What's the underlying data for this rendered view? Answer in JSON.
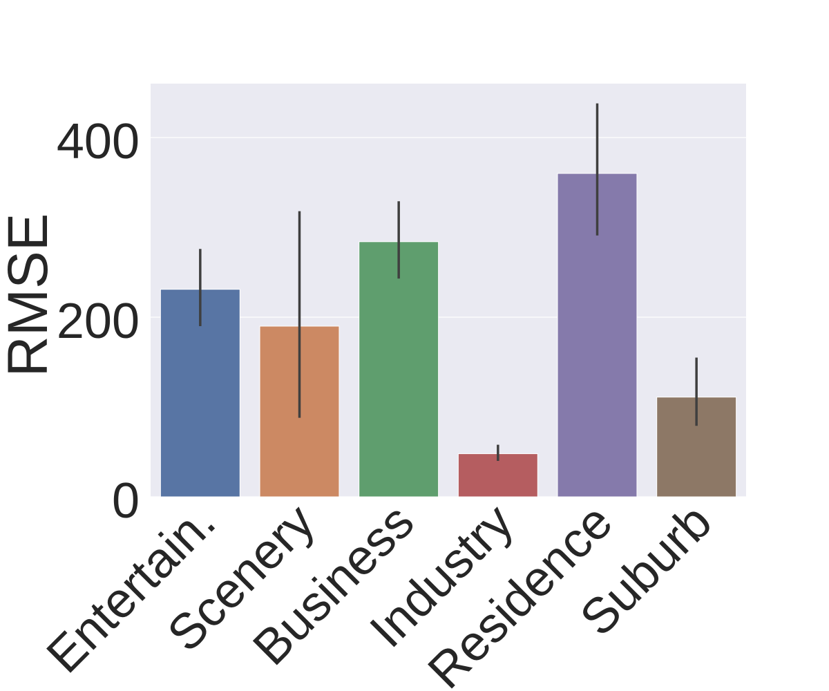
{
  "chart_data": {
    "type": "bar",
    "title": "",
    "xlabel": "",
    "ylabel": "RMSE",
    "categories": [
      "Entertain.",
      "Scenery",
      "Business",
      "Industry",
      "Residence",
      "Suburb"
    ],
    "values": [
      231,
      190,
      284,
      48,
      360,
      111
    ],
    "error_low": [
      190,
      88,
      243,
      40,
      291,
      79
    ],
    "error_high": [
      276,
      318,
      329,
      58,
      438,
      155
    ],
    "colors": [
      "#5875a4",
      "#cc8963",
      "#5f9e6e",
      "#b55d60",
      "#857aab",
      "#8d7866"
    ],
    "ylim": [
      0,
      460
    ],
    "yticks": [
      0,
      200,
      400
    ],
    "grid": true,
    "background": "#eaeaf2",
    "errorbar_color": "#3f3f3f",
    "text_color": "#262626"
  }
}
